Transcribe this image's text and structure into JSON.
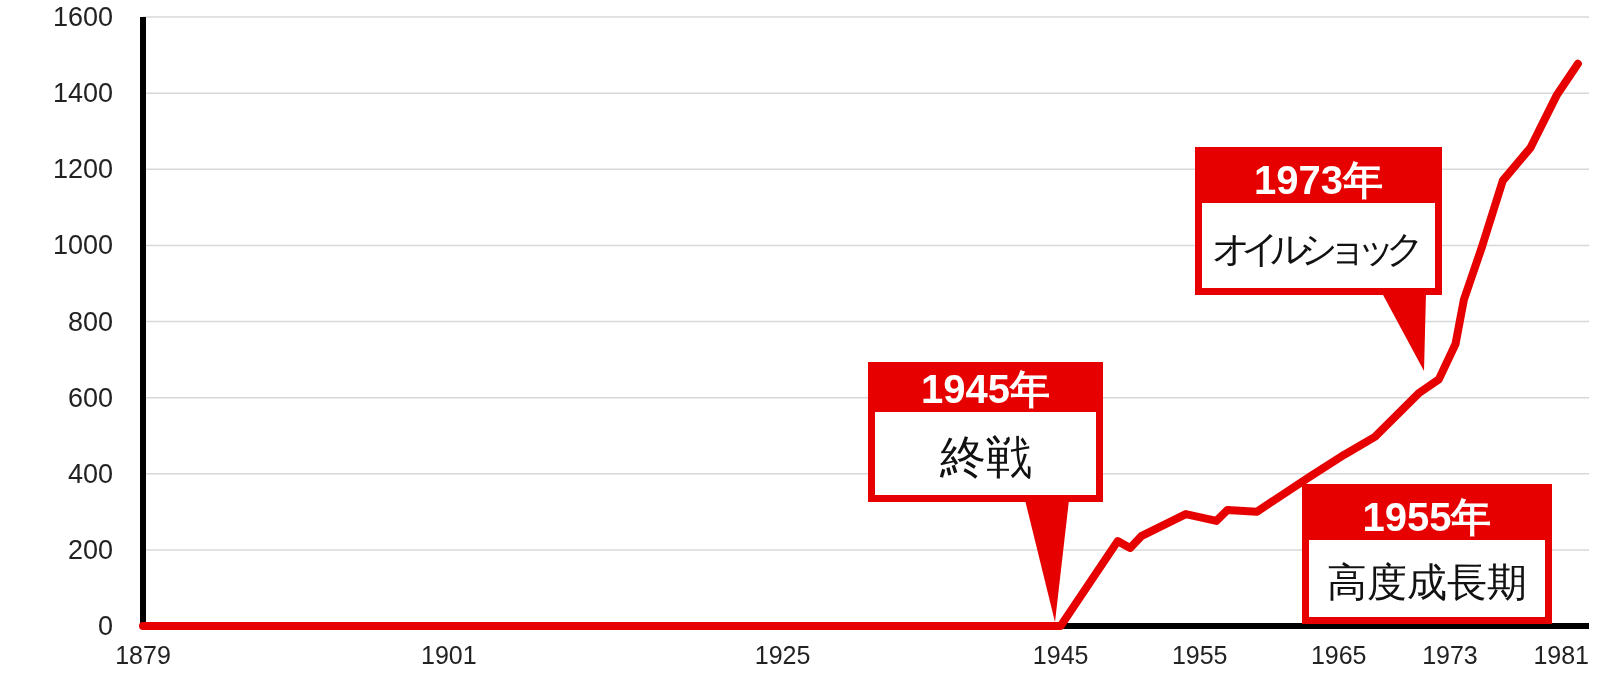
{
  "chart_data": {
    "type": "line",
    "x": [
      1879,
      1901,
      1925,
      1945,
      1949.1,
      1950,
      1950.8,
      1954,
      1956.2,
      1957,
      1959.1,
      1962.9,
      1965.4,
      1967.6,
      1970.8,
      1972.2,
      1973.4,
      1974,
      1975.3,
      1976.8,
      1978.8,
      1980.7,
      1982.2
    ],
    "series": [
      {
        "color": "#e60000",
        "values": [
          0,
          0,
          0,
          0,
          223,
          205,
          236,
          294,
          276,
          305,
          300,
          392,
          450,
          497,
          613,
          648,
          741,
          857,
          996,
          1170,
          1257,
          1396,
          1477
        ]
      }
    ],
    "xlim": [
      1879,
      1983
    ],
    "xticks": [
      1879,
      1901,
      1925,
      1945,
      1955,
      1965,
      1973,
      1981
    ],
    "ylim": [
      0,
      1600
    ],
    "yticks": [
      0,
      200,
      400,
      600,
      800,
      1000,
      1200,
      1400,
      1600
    ],
    "grid": "y",
    "line_style": "solid",
    "marker": "none",
    "annotations": [
      "1945年",
      "終戦",
      "1973年",
      "オイルショック",
      "1955年",
      "高度成長期"
    ]
  }
}
